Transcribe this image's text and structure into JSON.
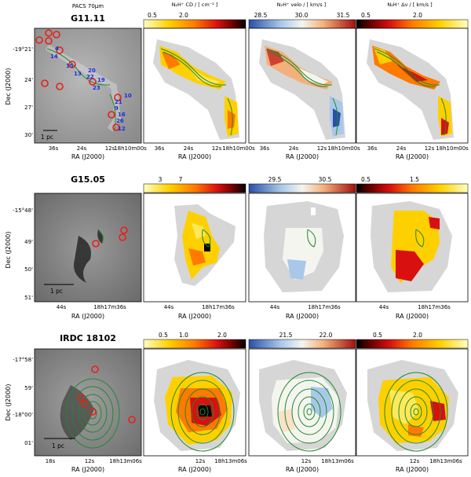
{
  "header": {
    "pacs_label": "PACS 70µm",
    "col1_label": "N₂H⁺ CD / [ cm⁻² ]",
    "col2_label": "N₂H⁺ velo / [ km/s ]",
    "col3_label": "N₂H⁺ Δv / [ km/s ]"
  },
  "rows": [
    {
      "name": "G11.11",
      "dec_label": "Dec (J2000)",
      "ra_label": "RA (J2000)",
      "dec_ticks": [
        "-19°21'",
        "24'",
        "27'",
        "30'"
      ],
      "ra_ticks_pacs": [
        "36s",
        "24s",
        "12s",
        "18h10m00s"
      ],
      "ra_ticks_maps": [
        "36s",
        "24s",
        "12s",
        "18h10m00s"
      ],
      "scale_label": "1 pc",
      "cbar1": [
        "0.5",
        "2.0"
      ],
      "cbar1_exp": "1e13",
      "cbar2": [
        "28.5",
        "30.0",
        "31.5"
      ],
      "cbar3": [
        "0.5",
        "2.0"
      ],
      "source_labels": [
        "4",
        "14",
        "15",
        "13",
        "20",
        "22",
        "19",
        "23",
        "10",
        "21",
        "9",
        "16",
        "26",
        "12"
      ]
    },
    {
      "name": "G15.05",
      "dec_label": "Dec (J2000)",
      "ra_label": "RA (J2000)",
      "dec_ticks": [
        "-15°48'",
        "49'",
        "50'",
        "51'"
      ],
      "ra_ticks_pacs": [
        "44s",
        "18h17m36s"
      ],
      "ra_ticks_maps": [
        "44s",
        "18h17m36s"
      ],
      "scale_label": "1 pc",
      "cbar1": [
        "3",
        "7"
      ],
      "cbar1_exp": "1e12",
      "cbar2": [
        "29.5",
        "30.5"
      ],
      "cbar3": [
        "0.5",
        "1.5"
      ]
    },
    {
      "name": "IRDC 18102",
      "dec_label": "Dec (J2000)",
      "ra_label": "RA (J2000)",
      "dec_ticks": [
        "-17°58'",
        "59'",
        "-18°00'",
        "01'"
      ],
      "ra_ticks_pacs": [
        "18s",
        "12s",
        "18h13m06s"
      ],
      "ra_ticks_maps": [
        "12s",
        "18h13m06s"
      ],
      "scale_label": "1 pc",
      "cbar1": [
        "0.5",
        "1.0",
        "2.0"
      ],
      "cbar1_exp": "1e13",
      "cbar2": [
        "21.5",
        "22.0"
      ],
      "cbar3": [
        "0.5",
        "2.0"
      ]
    }
  ],
  "colors": {
    "contour": "#1f8a2a",
    "marker": "#e8201a",
    "label": "#1a2ee0",
    "blank": "#d6d6d6"
  }
}
